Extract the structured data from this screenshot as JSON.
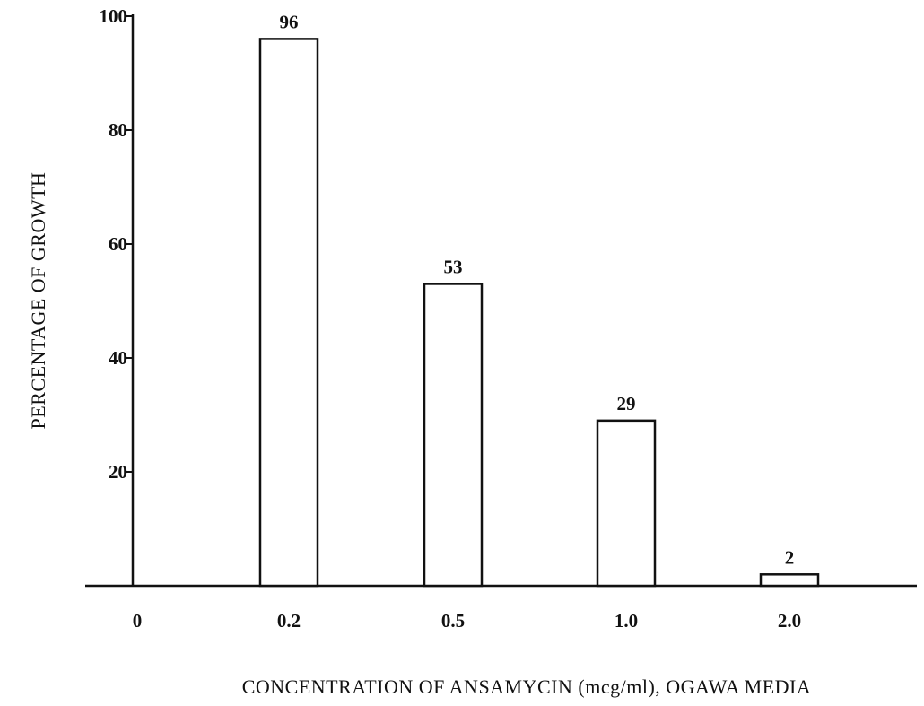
{
  "chart_data": {
    "type": "bar",
    "title": "",
    "xlabel": "CONCENTRATION OF ANSAMYCIN (mcg/ml), OGAWA MEDIA",
    "ylabel": "PERCENTAGE OF GROWTH",
    "origin_label": "0",
    "categories": [
      "0.2",
      "0.5",
      "1.0",
      "2.0"
    ],
    "values": [
      96,
      53,
      29,
      2
    ],
    "yticks": [
      20,
      40,
      60,
      80,
      100
    ],
    "ylim": [
      0,
      100
    ],
    "grid": false,
    "legend": "none",
    "colors": {
      "bar_fill": "#ffffff",
      "bar_stroke": "#111111",
      "axis": "#111111"
    }
  }
}
